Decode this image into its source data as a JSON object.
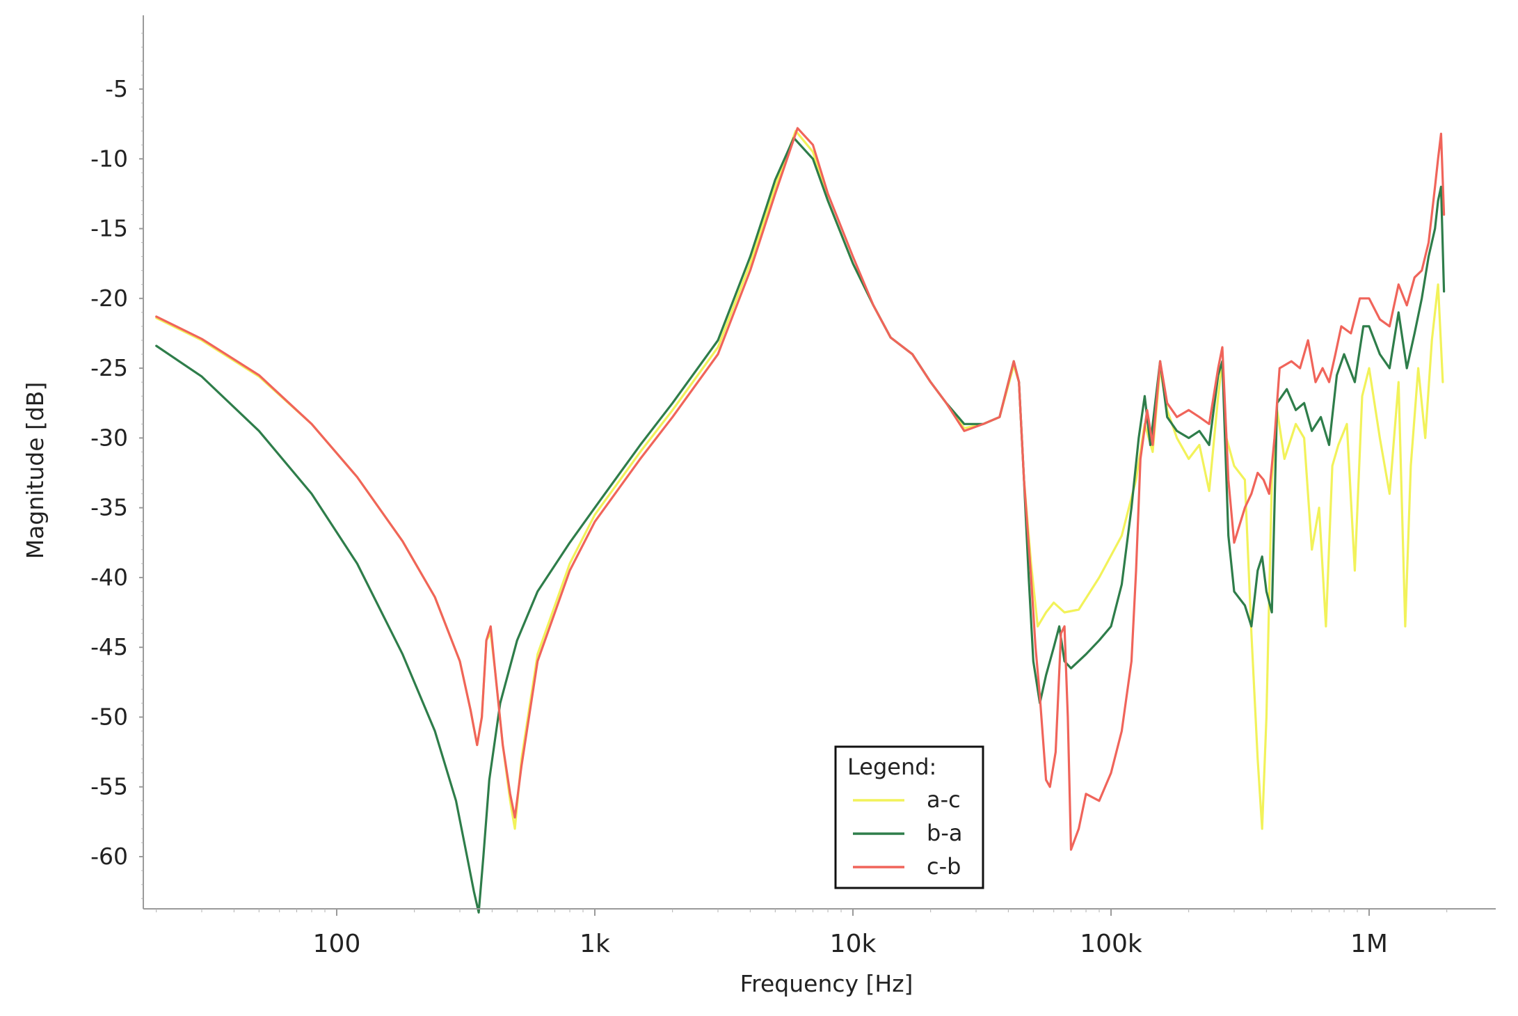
{
  "chart_data": {
    "type": "line",
    "title": "",
    "xlabel": "Frequency [Hz]",
    "ylabel": "Magnitude [dB]",
    "x_scale": "log",
    "xlim": [
      20,
      2600000
    ],
    "ylim": [
      -64,
      5
    ],
    "x_ticks": [
      {
        "value": 100,
        "label": "100"
      },
      {
        "value": 1000,
        "label": "1k"
      },
      {
        "value": 10000,
        "label": "10k"
      },
      {
        "value": 100000,
        "label": "100k"
      },
      {
        "value": 1000000,
        "label": "1M"
      }
    ],
    "y_ticks": [
      -5,
      -10,
      -15,
      -20,
      -25,
      -30,
      -35,
      -40,
      -45,
      -50,
      -55,
      -60
    ],
    "grid": false,
    "legend": {
      "title": "Legend:",
      "position": "bottom-center"
    },
    "series": [
      {
        "name": "a-c",
        "color": "#f2f25a",
        "points": [
          [
            20,
            -21.4
          ],
          [
            30,
            -23.0
          ],
          [
            50,
            -25.6
          ],
          [
            80,
            -29.0
          ],
          [
            120,
            -32.8
          ],
          [
            180,
            -37.4
          ],
          [
            240,
            -41.4
          ],
          [
            300,
            -46.0
          ],
          [
            330,
            -49.5
          ],
          [
            350,
            -52.0
          ],
          [
            365,
            -50.0
          ],
          [
            380,
            -44.5
          ],
          [
            395,
            -44.0
          ],
          [
            410,
            -46.5
          ],
          [
            440,
            -52.0
          ],
          [
            470,
            -56.0
          ],
          [
            490,
            -58.0
          ],
          [
            520,
            -53.0
          ],
          [
            600,
            -45.5
          ],
          [
            800,
            -39.0
          ],
          [
            1000,
            -35.5
          ],
          [
            1500,
            -31.0
          ],
          [
            2000,
            -28.0
          ],
          [
            3000,
            -23.5
          ],
          [
            4000,
            -17.5
          ],
          [
            5000,
            -12.0
          ],
          [
            6000,
            -8.0
          ],
          [
            7000,
            -9.5
          ],
          [
            8000,
            -13.0
          ],
          [
            10000,
            -17.5
          ],
          [
            12000,
            -20.5
          ],
          [
            14000,
            -22.8
          ],
          [
            17000,
            -24.0
          ],
          [
            20000,
            -26.0
          ],
          [
            23000,
            -27.5
          ],
          [
            27000,
            -29.3
          ],
          [
            32000,
            -29.0
          ],
          [
            37000,
            -28.5
          ],
          [
            42000,
            -24.8
          ],
          [
            44000,
            -26.0
          ],
          [
            46000,
            -33.0
          ],
          [
            49000,
            -39.0
          ],
          [
            52000,
            -43.5
          ],
          [
            56000,
            -42.5
          ],
          [
            60000,
            -41.8
          ],
          [
            66000,
            -42.5
          ],
          [
            75000,
            -42.3
          ],
          [
            90000,
            -40.0
          ],
          [
            110000,
            -37.0
          ],
          [
            125000,
            -33.0
          ],
          [
            135000,
            -29.0
          ],
          [
            145000,
            -31.0
          ],
          [
            155000,
            -25.0
          ],
          [
            165000,
            -28.0
          ],
          [
            180000,
            -30.0
          ],
          [
            200000,
            -31.5
          ],
          [
            220000,
            -30.5
          ],
          [
            240000,
            -33.8
          ],
          [
            260000,
            -27.0
          ],
          [
            270000,
            -24.5
          ],
          [
            280000,
            -30.0
          ],
          [
            300000,
            -32.0
          ],
          [
            330000,
            -33.0
          ],
          [
            350000,
            -44.0
          ],
          [
            370000,
            -53.0
          ],
          [
            385000,
            -58.0
          ],
          [
            400000,
            -50.0
          ],
          [
            420000,
            -33.0
          ],
          [
            440000,
            -28.0
          ],
          [
            470000,
            -31.5
          ],
          [
            520000,
            -29.0
          ],
          [
            560000,
            -30.0
          ],
          [
            600000,
            -38.0
          ],
          [
            640000,
            -35.0
          ],
          [
            680000,
            -43.5
          ],
          [
            720000,
            -32.0
          ],
          [
            760000,
            -30.5
          ],
          [
            820000,
            -29.0
          ],
          [
            880000,
            -39.5
          ],
          [
            940000,
            -27.0
          ],
          [
            1000000,
            -25.0
          ],
          [
            1100000,
            -30.0
          ],
          [
            1200000,
            -34.0
          ],
          [
            1300000,
            -26.0
          ],
          [
            1380000,
            -43.5
          ],
          [
            1450000,
            -32.0
          ],
          [
            1550000,
            -25.0
          ],
          [
            1650000,
            -30.0
          ],
          [
            1750000,
            -23.0
          ],
          [
            1850000,
            -19.0
          ],
          [
            1930000,
            -26.0
          ]
        ]
      },
      {
        "name": "b-a",
        "color": "#2e7d4a",
        "points": [
          [
            20,
            -23.4
          ],
          [
            30,
            -25.6
          ],
          [
            50,
            -29.5
          ],
          [
            80,
            -34.0
          ],
          [
            120,
            -39.0
          ],
          [
            180,
            -45.5
          ],
          [
            240,
            -51.0
          ],
          [
            290,
            -56.0
          ],
          [
            320,
            -60.0
          ],
          [
            340,
            -62.5
          ],
          [
            355,
            -64.0
          ],
          [
            370,
            -60.0
          ],
          [
            390,
            -54.5
          ],
          [
            430,
            -49.0
          ],
          [
            500,
            -44.5
          ],
          [
            600,
            -41.0
          ],
          [
            800,
            -37.5
          ],
          [
            1000,
            -35.0
          ],
          [
            1500,
            -30.5
          ],
          [
            2000,
            -27.5
          ],
          [
            3000,
            -23.0
          ],
          [
            4000,
            -17.0
          ],
          [
            5000,
            -11.5
          ],
          [
            5900,
            -8.5
          ],
          [
            7000,
            -10.0
          ],
          [
            8000,
            -13.0
          ],
          [
            10000,
            -17.5
          ],
          [
            12000,
            -20.5
          ],
          [
            14000,
            -22.8
          ],
          [
            17000,
            -24.0
          ],
          [
            20000,
            -26.0
          ],
          [
            23000,
            -27.5
          ],
          [
            27000,
            -29.0
          ],
          [
            32000,
            -29.0
          ],
          [
            37000,
            -28.5
          ],
          [
            42000,
            -24.5
          ],
          [
            44000,
            -26.0
          ],
          [
            46000,
            -33.0
          ],
          [
            48000,
            -40.0
          ],
          [
            50000,
            -46.0
          ],
          [
            53000,
            -49.0
          ],
          [
            56000,
            -47.0
          ],
          [
            60000,
            -45.0
          ],
          [
            63000,
            -43.5
          ],
          [
            66000,
            -46.0
          ],
          [
            70000,
            -46.5
          ],
          [
            80000,
            -45.5
          ],
          [
            90000,
            -44.5
          ],
          [
            100000,
            -43.5
          ],
          [
            110000,
            -40.5
          ],
          [
            120000,
            -35.0
          ],
          [
            128000,
            -30.0
          ],
          [
            135000,
            -27.0
          ],
          [
            142000,
            -30.5
          ],
          [
            155000,
            -24.5
          ],
          [
            165000,
            -28.5
          ],
          [
            180000,
            -29.5
          ],
          [
            200000,
            -30.0
          ],
          [
            220000,
            -29.5
          ],
          [
            240000,
            -30.5
          ],
          [
            260000,
            -25.5
          ],
          [
            270000,
            -24.5
          ],
          [
            285000,
            -37.0
          ],
          [
            300000,
            -41.0
          ],
          [
            330000,
            -42.0
          ],
          [
            350000,
            -43.5
          ],
          [
            370000,
            -39.5
          ],
          [
            385000,
            -38.5
          ],
          [
            400000,
            -41.0
          ],
          [
            420000,
            -42.5
          ],
          [
            440000,
            -27.5
          ],
          [
            480000,
            -26.5
          ],
          [
            520000,
            -28.0
          ],
          [
            560000,
            -27.5
          ],
          [
            600000,
            -29.5
          ],
          [
            650000,
            -28.5
          ],
          [
            700000,
            -30.5
          ],
          [
            750000,
            -25.5
          ],
          [
            800000,
            -24.0
          ],
          [
            880000,
            -26.0
          ],
          [
            950000,
            -22.0
          ],
          [
            1000000,
            -22.0
          ],
          [
            1100000,
            -24.0
          ],
          [
            1200000,
            -25.0
          ],
          [
            1300000,
            -21.0
          ],
          [
            1400000,
            -25.0
          ],
          [
            1500000,
            -22.5
          ],
          [
            1600000,
            -20.0
          ],
          [
            1700000,
            -17.0
          ],
          [
            1800000,
            -15.0
          ],
          [
            1850000,
            -13.0
          ],
          [
            1900000,
            -12.0
          ],
          [
            1950000,
            -19.5
          ]
        ]
      },
      {
        "name": "c-b",
        "color": "#f0645a",
        "points": [
          [
            20,
            -21.3
          ],
          [
            30,
            -22.9
          ],
          [
            50,
            -25.5
          ],
          [
            80,
            -29.0
          ],
          [
            120,
            -32.8
          ],
          [
            180,
            -37.4
          ],
          [
            240,
            -41.4
          ],
          [
            300,
            -46.0
          ],
          [
            330,
            -49.5
          ],
          [
            350,
            -52.0
          ],
          [
            365,
            -50.0
          ],
          [
            380,
            -44.5
          ],
          [
            395,
            -43.5
          ],
          [
            410,
            -46.5
          ],
          [
            440,
            -52.0
          ],
          [
            470,
            -55.5
          ],
          [
            490,
            -57.2
          ],
          [
            520,
            -53.5
          ],
          [
            600,
            -46.0
          ],
          [
            800,
            -39.5
          ],
          [
            1000,
            -36.0
          ],
          [
            1500,
            -31.5
          ],
          [
            2000,
            -28.5
          ],
          [
            3000,
            -24.0
          ],
          [
            4000,
            -18.0
          ],
          [
            5000,
            -12.5
          ],
          [
            6100,
            -7.8
          ],
          [
            7000,
            -9.0
          ],
          [
            8000,
            -12.5
          ],
          [
            10000,
            -17.0
          ],
          [
            12000,
            -20.5
          ],
          [
            14000,
            -22.8
          ],
          [
            17000,
            -24.0
          ],
          [
            20000,
            -26.0
          ],
          [
            23000,
            -27.5
          ],
          [
            27000,
            -29.5
          ],
          [
            32000,
            -29.0
          ],
          [
            37000,
            -28.5
          ],
          [
            42000,
            -24.5
          ],
          [
            44000,
            -26.0
          ],
          [
            46000,
            -33.0
          ],
          [
            49000,
            -40.0
          ],
          [
            51000,
            -45.0
          ],
          [
            53000,
            -48.5
          ],
          [
            56000,
            -54.5
          ],
          [
            58000,
            -55.0
          ],
          [
            61000,
            -52.5
          ],
          [
            64000,
            -44.0
          ],
          [
            66000,
            -43.5
          ],
          [
            68000,
            -50.0
          ],
          [
            70000,
            -59.5
          ],
          [
            75000,
            -58.0
          ],
          [
            80000,
            -55.5
          ],
          [
            90000,
            -56.0
          ],
          [
            100000,
            -54.0
          ],
          [
            110000,
            -51.0
          ],
          [
            120000,
            -46.0
          ],
          [
            125000,
            -39.5
          ],
          [
            130000,
            -31.5
          ],
          [
            138000,
            -28.0
          ],
          [
            145000,
            -30.5
          ],
          [
            155000,
            -24.5
          ],
          [
            165000,
            -27.5
          ],
          [
            180000,
            -28.5
          ],
          [
            200000,
            -28.0
          ],
          [
            220000,
            -28.5
          ],
          [
            240000,
            -29.0
          ],
          [
            260000,
            -25.0
          ],
          [
            270000,
            -23.5
          ],
          [
            285000,
            -33.0
          ],
          [
            300000,
            -37.5
          ],
          [
            330000,
            -35.0
          ],
          [
            350000,
            -34.0
          ],
          [
            370000,
            -32.5
          ],
          [
            390000,
            -33.0
          ],
          [
            410000,
            -34.0
          ],
          [
            430000,
            -30.0
          ],
          [
            450000,
            -25.0
          ],
          [
            500000,
            -24.5
          ],
          [
            540000,
            -25.0
          ],
          [
            580000,
            -23.0
          ],
          [
            620000,
            -26.0
          ],
          [
            660000,
            -25.0
          ],
          [
            700000,
            -26.0
          ],
          [
            740000,
            -24.0
          ],
          [
            780000,
            -22.0
          ],
          [
            850000,
            -22.5
          ],
          [
            920000,
            -20.0
          ],
          [
            1000000,
            -20.0
          ],
          [
            1100000,
            -21.5
          ],
          [
            1200000,
            -22.0
          ],
          [
            1300000,
            -19.0
          ],
          [
            1400000,
            -20.5
          ],
          [
            1500000,
            -18.5
          ],
          [
            1600000,
            -18.0
          ],
          [
            1700000,
            -16.0
          ],
          [
            1800000,
            -12.0
          ],
          [
            1850000,
            -10.0
          ],
          [
            1900000,
            -8.2
          ],
          [
            1950000,
            -14.0
          ]
        ]
      }
    ]
  }
}
